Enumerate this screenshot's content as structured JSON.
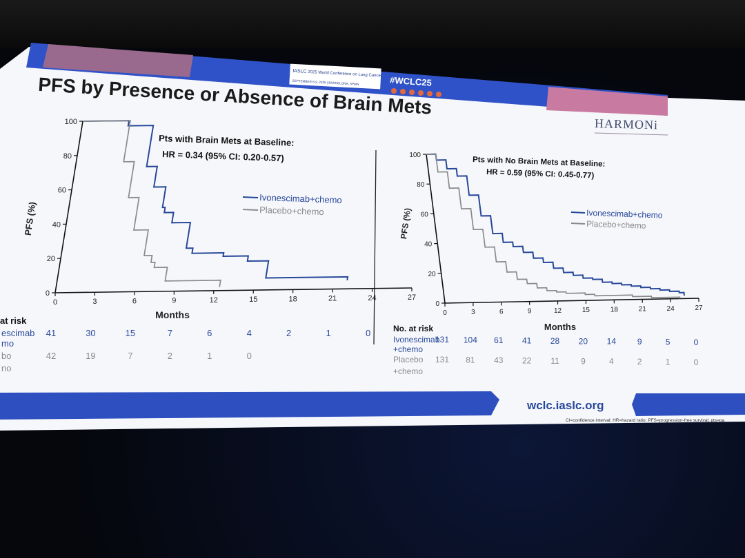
{
  "header": {
    "organization": "IASLC",
    "conference": "2025 World Conference on Lung Cancer",
    "dates_location": "SEPTEMBER 6-9, 2025 | BARCELONA, SPAIN",
    "hashtag": "#WCLC25"
  },
  "slide": {
    "title": "PFS by Presence or Absence of Brain Mets",
    "trial_logo": "HARMONi",
    "footer_url": "wclc.iaslc.org",
    "footnote": "CI=confidence interval; HR=hazard ratio; PFS=progression-free survival; pts=pa"
  },
  "chart_data": [
    {
      "type": "line",
      "title": "Pts with Brain Mets at Baseline:",
      "subtitle": "HR = 0.34 (95% CI: 0.20-0.57)",
      "xlabel": "Months",
      "ylabel": "PFS (%)",
      "xlim": [
        0,
        27
      ],
      "ylim": [
        0,
        100
      ],
      "xticks": [
        "0",
        "3",
        "6",
        "9",
        "12",
        "15",
        "18",
        "21",
        "24",
        "27"
      ],
      "yticks": [
        "0",
        "20",
        "40",
        "60",
        "80",
        "100"
      ],
      "legend": "middle-right",
      "series": [
        {
          "name": "Ivonescimab+chemo",
          "color": "#27489a",
          "x": [
            0,
            3.5,
            5.4,
            6.2,
            7.1,
            7.3,
            8.0,
            9.4,
            9.9,
            12.3,
            14.2,
            15.8,
            22.0
          ],
          "y": [
            100,
            97,
            73,
            61,
            49,
            46,
            40,
            25,
            22,
            20,
            17,
            7,
            5
          ]
        },
        {
          "name": "Placebo+chemo",
          "color": "#8a8a8a",
          "x": [
            0,
            3.6,
            4.4,
            5.2,
            6.3,
            6.9,
            7.2,
            8.2,
            12.4
          ],
          "y": [
            100,
            76,
            55,
            36,
            21,
            17,
            14,
            6,
            2
          ]
        }
      ],
      "at_risk": {
        "label": "at risk",
        "rows": [
          {
            "name": "escimab",
            "name2": "mo",
            "color": "#27489a",
            "values": [
              "41",
              "30",
              "15",
              "7",
              "6",
              "4",
              "2",
              "1",
              "0"
            ]
          },
          {
            "name": "bo",
            "name2": "no",
            "color": "#8a8a8a",
            "values": [
              "42",
              "19",
              "7",
              "2",
              "1",
              "0"
            ]
          }
        ]
      }
    },
    {
      "type": "line",
      "title": "Pts with No Brain Mets at Baseline:",
      "subtitle": "HR = 0.59 (95% CI: 0.45-0.77)",
      "xlabel": "Months",
      "ylabel": "PFS (%)",
      "xlim": [
        0,
        27
      ],
      "ylim": [
        0,
        100
      ],
      "xticks": [
        "0",
        "3",
        "6",
        "9",
        "12",
        "15",
        "18",
        "21",
        "24",
        "27"
      ],
      "yticks": [
        "0",
        "20",
        "40",
        "60",
        "80",
        "100"
      ],
      "legend": "middle-right",
      "series": [
        {
          "name": "Ivonescimab+chemo",
          "color": "#27489a",
          "x": [
            0,
            1,
            2,
            3,
            4,
            5,
            6,
            7,
            8,
            9,
            10,
            11,
            12,
            13,
            14,
            15,
            16,
            17,
            18,
            19,
            20,
            21,
            22,
            23,
            24,
            25,
            25.5
          ],
          "y": [
            100,
            96,
            90,
            85,
            72,
            58,
            46,
            40,
            37,
            33,
            29,
            26,
            22,
            19,
            17,
            15,
            14,
            12,
            11,
            10,
            9,
            8,
            7,
            6,
            5,
            4,
            2
          ]
        },
        {
          "name": "Placebo+chemo",
          "color": "#8a8a8a",
          "x": [
            0,
            1,
            2,
            3,
            4,
            5,
            6,
            7,
            8,
            9,
            10,
            11,
            12,
            13,
            14,
            15,
            16,
            18,
            20,
            22,
            24,
            25
          ],
          "y": [
            100,
            88,
            77,
            63,
            49,
            37,
            27,
            20,
            15,
            12,
            9,
            7,
            6,
            5,
            5,
            4,
            3,
            3,
            2,
            1,
            1,
            0
          ]
        }
      ],
      "at_risk": {
        "label": "No. at risk",
        "rows": [
          {
            "name": "Ivonescimab",
            "name2": "+chemo",
            "color": "#27489a",
            "values": [
              "131",
              "104",
              "61",
              "41",
              "28",
              "20",
              "14",
              "9",
              "5",
              "0"
            ]
          },
          {
            "name": "Placebo",
            "name2": "+chemo",
            "color": "#8a8a8a",
            "values": [
              "131",
              "81",
              "43",
              "22",
              "11",
              "9",
              "4",
              "2",
              "1",
              "0"
            ]
          }
        ]
      }
    }
  ]
}
